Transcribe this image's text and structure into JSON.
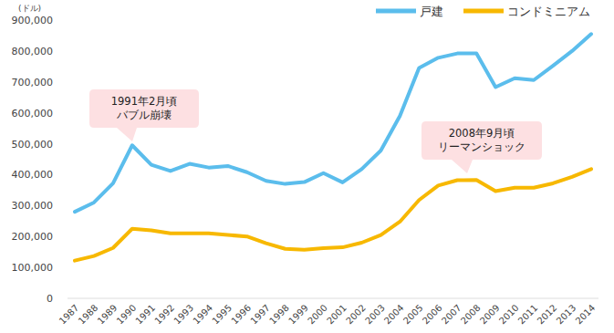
{
  "chart_data": {
    "type": "line",
    "y_label": "(ドル)",
    "categories": [
      "1987",
      "1988",
      "1989",
      "1990",
      "1991",
      "1992",
      "1993",
      "1994",
      "1995",
      "1996",
      "1997",
      "1998",
      "1999",
      "2000",
      "2001",
      "2002",
      "2003",
      "2004",
      "2005",
      "2006",
      "2007",
      "2008",
      "2009",
      "2010",
      "2011",
      "2012",
      "2013",
      "2014"
    ],
    "series": [
      {
        "name": "戸建",
        "color": "#5bbdec",
        "values": [
          280000,
          310000,
          372000,
          495000,
          432000,
          412000,
          435000,
          423000,
          428000,
          408000,
          380000,
          370000,
          376000,
          405000,
          375000,
          418000,
          478000,
          590000,
          745000,
          778000,
          792000,
          792000,
          683000,
          712000,
          706000,
          752000,
          800000,
          855000
        ]
      },
      {
        "name": "コンドミニアム",
        "color": "#f7b800",
        "values": [
          122000,
          137000,
          163000,
          225000,
          220000,
          210000,
          210000,
          210000,
          205000,
          200000,
          178000,
          160000,
          157000,
          162000,
          165000,
          180000,
          205000,
          248000,
          318000,
          365000,
          382000,
          383000,
          347000,
          358000,
          358000,
          372000,
          393000,
          418000
        ]
      }
    ],
    "ylim": [
      0,
      900000
    ],
    "yticks": [
      0,
      {
        "value": 100000,
        "label": "100,000"
      },
      {
        "value": 200000,
        "label": "200,000"
      },
      {
        "value": 300000,
        "label": "300,000"
      },
      {
        "value": 400000,
        "label": "400,000"
      },
      {
        "value": 500000,
        "label": "500,000"
      },
      {
        "value": 600000,
        "label": "600,000"
      },
      {
        "value": 700000,
        "label": "700,000"
      },
      {
        "value": 800000,
        "label": "800,000"
      },
      {
        "value": 900000,
        "label": "900,000"
      }
    ],
    "grid": false,
    "legend": "top-right",
    "annotations": [
      {
        "lines": [
          "1991年2月頃",
          "バブル崩壊"
        ]
      },
      {
        "lines": [
          "2008年9月頃",
          "リーマンショック"
        ]
      }
    ]
  }
}
